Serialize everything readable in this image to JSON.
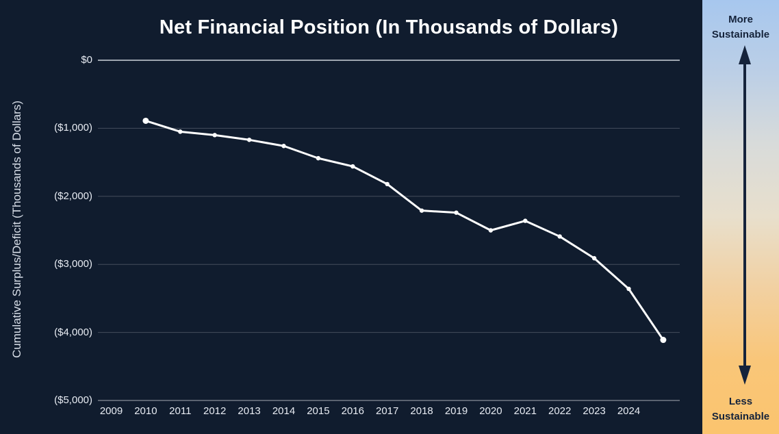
{
  "chart_data": {
    "type": "line",
    "title": "Net Financial Position (In Thousands of Dollars)",
    "ylabel": "Cumulative Surplus/Deficit (Thousands of Dollars)",
    "xlabel": "",
    "series_name": "Net Financial Position",
    "x": [
      2010,
      2011,
      2012,
      2013,
      2014,
      2015,
      2016,
      2017,
      2018,
      2019,
      2020,
      2021,
      2022,
      2023,
      2024,
      2025
    ],
    "values": [
      -890,
      -1050,
      -1100,
      -1170,
      -1260,
      -1440,
      -1560,
      -1820,
      -2210,
      -2240,
      -2500,
      -2360,
      -2590,
      -2910,
      -3360,
      -4110
    ],
    "x_tick_labels": [
      "2009",
      "2010",
      "2011",
      "2012",
      "2013",
      "2014",
      "2015",
      "2016",
      "2017",
      "2018",
      "2019",
      "2020",
      "2021",
      "2022",
      "2023",
      "2024"
    ],
    "x_tick_start_year": 2009,
    "y_tick_labels": [
      "$0",
      "($1,000)",
      "($2,000)",
      "($3,000)",
      "($4,000)",
      "($5,000)"
    ],
    "y_tick_values": [
      0,
      -1000,
      -2000,
      -3000,
      -4000,
      -5000
    ],
    "ylim": [
      -5000,
      0
    ],
    "xlim": [
      2009,
      2025.5
    ],
    "grid": true,
    "legend": "none"
  },
  "colors": {
    "background": "#101c2e",
    "line": "#ffffff",
    "marker": "#ffffff",
    "grid": "rgba(255,255,255,0.22)",
    "zero_line": "rgba(240,244,250,0.85)",
    "axis_line": "rgba(255,255,255,0.5)",
    "tick_text": "#e8ecf3",
    "title_text": "#ffffff"
  },
  "sidebar": {
    "top_label": "More Sustainable",
    "bottom_label": "Less Sustainable",
    "text_color": "#15233b",
    "arrow_color": "#15233b",
    "gradient": [
      "#a7c7ee",
      "#bccfe6",
      "#d8dbda",
      "#e8dfcc",
      "#f2d0a0",
      "#f9c679",
      "#fbc46e"
    ]
  }
}
